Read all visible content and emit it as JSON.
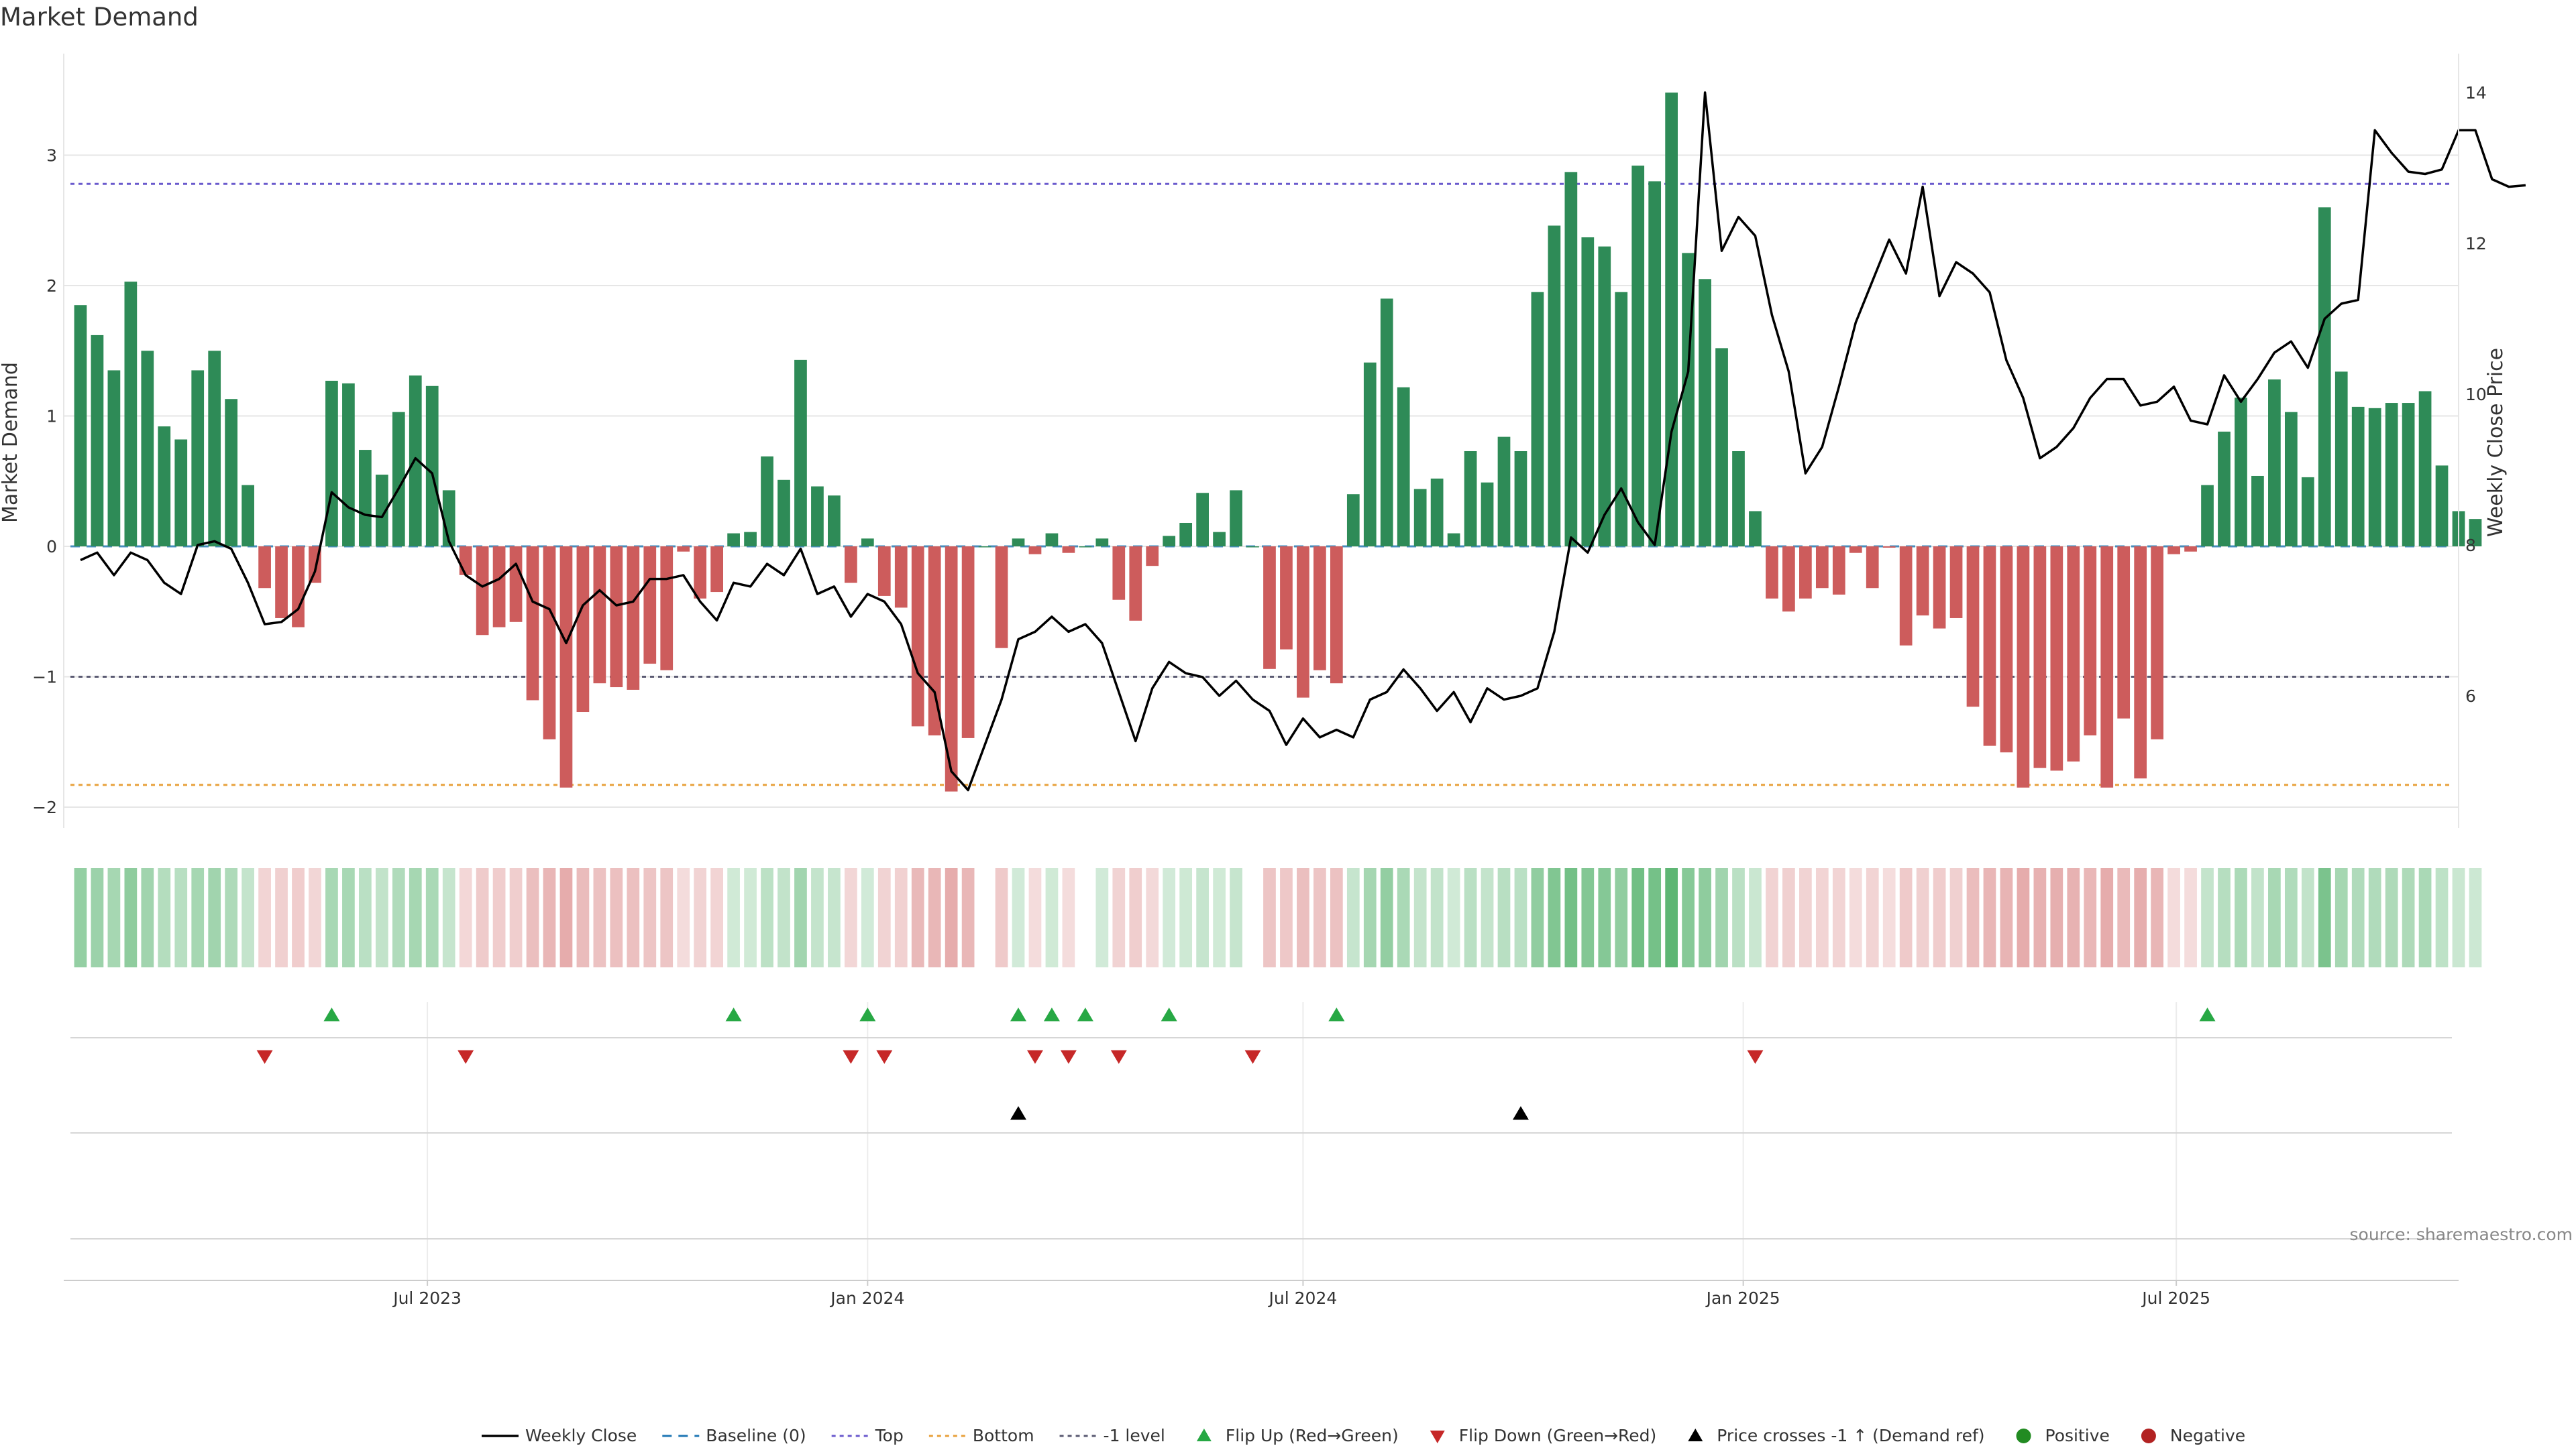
{
  "chart_data": {
    "type": "bar",
    "title": "Market Demand",
    "ylabel": "Market Demand",
    "y2label": "Weekly Close Price",
    "ylim": [
      -2.2,
      3.6
    ],
    "y2lim": [
      4.5,
      14.8
    ],
    "yticks": [
      -2,
      -1,
      0,
      1,
      2,
      3
    ],
    "y2ticks": [
      6,
      8,
      10,
      12,
      14
    ],
    "x_start": "2023-02-06",
    "x_step_days": 7,
    "xlim": [
      "2023-01-30",
      "2025-10-27"
    ],
    "xticks": [
      {
        "date": "2023-07-01",
        "label": "Jul 2023"
      },
      {
        "date": "2024-01-01",
        "label": "Jan 2024"
      },
      {
        "date": "2024-07-01",
        "label": "Jul 2024"
      },
      {
        "date": "2025-01-01",
        "label": "Jan 2025"
      },
      {
        "date": "2025-07-01",
        "label": "Jul 2025"
      }
    ],
    "demand": [
      1.85,
      1.62,
      1.35,
      2.03,
      1.5,
      0.92,
      0.82,
      1.35,
      1.5,
      1.13,
      0.47,
      -0.32,
      -0.55,
      -0.62,
      -0.28,
      1.27,
      1.25,
      0.74,
      0.55,
      1.03,
      1.31,
      1.23,
      0.43,
      -0.22,
      -0.68,
      -0.62,
      -0.58,
      -1.18,
      -1.48,
      -1.85,
      -1.27,
      -1.05,
      -1.08,
      -1.1,
      -0.9,
      -0.95,
      -0.04,
      -0.4,
      -0.35,
      0.1,
      0.11,
      0.69,
      0.51,
      1.43,
      0.46,
      0.39,
      -0.28,
      0.06,
      -0.38,
      -0.47,
      -1.38,
      -1.45,
      -1.88,
      -1.47,
      0.0,
      -0.78,
      0.06,
      -0.06,
      0.1,
      -0.05,
      0.0,
      0.06,
      -0.41,
      -0.57,
      -0.15,
      0.08,
      0.18,
      0.41,
      0.11,
      0.43,
      0.0,
      -0.94,
      -0.79,
      -1.16,
      -0.95,
      -1.05,
      0.4,
      1.41,
      1.9,
      1.22,
      0.44,
      0.52,
      0.1,
      0.73,
      0.49,
      0.84,
      0.73,
      1.95,
      2.46,
      2.87,
      2.37,
      2.3,
      1.95,
      2.92,
      2.8,
      3.48,
      2.25,
      2.05,
      1.52,
      0.73,
      0.27,
      -0.4,
      -0.5,
      -0.4,
      -0.32,
      -0.37,
      -0.05,
      -0.32,
      -0.01,
      -0.76,
      -0.53,
      -0.63,
      -0.55,
      -1.23,
      -1.53,
      -1.58,
      -1.85,
      -1.7,
      -1.72,
      -1.65,
      -1.45,
      -1.85,
      -1.32,
      -1.78,
      -1.48,
      -0.06,
      -0.04,
      0.47,
      0.88,
      1.14,
      0.54,
      1.28,
      1.03,
      0.53,
      2.6,
      1.34,
      1.07,
      1.06,
      1.1,
      1.1,
      1.19,
      0.62,
      0.27,
      0.21
    ],
    "close": [
      7.8,
      7.9,
      7.6,
      7.9,
      7.8,
      7.5,
      7.35,
      8.0,
      8.05,
      7.95,
      7.5,
      6.95,
      6.98,
      7.15,
      7.65,
      8.7,
      8.5,
      8.4,
      8.37,
      8.75,
      9.15,
      8.95,
      8.05,
      7.6,
      7.45,
      7.55,
      7.75,
      7.25,
      7.15,
      6.7,
      7.2,
      7.4,
      7.2,
      7.25,
      7.55,
      7.55,
      7.6,
      7.25,
      7.0,
      7.5,
      7.45,
      7.75,
      7.6,
      7.95,
      7.35,
      7.45,
      7.05,
      7.35,
      7.25,
      6.95,
      6.3,
      6.05,
      5.0,
      4.75,
      5.35,
      5.95,
      6.75,
      6.85,
      7.05,
      6.85,
      6.95,
      6.7,
      6.05,
      5.4,
      6.1,
      6.45,
      6.3,
      6.25,
      6.0,
      6.2,
      5.95,
      5.8,
      5.35,
      5.7,
      5.45,
      5.55,
      5.45,
      5.95,
      6.05,
      6.35,
      6.1,
      5.8,
      6.05,
      5.65,
      6.1,
      5.95,
      6.0,
      6.1,
      6.85,
      8.1,
      7.9,
      8.4,
      8.75,
      8.3,
      8.0,
      9.5,
      10.3,
      14.0,
      11.9,
      12.35,
      12.1,
      11.05,
      10.3,
      8.95,
      9.3,
      10.1,
      10.95,
      11.5,
      12.05,
      11.6,
      12.75,
      11.3,
      11.75,
      11.6,
      11.35,
      10.45,
      9.95,
      9.15,
      9.3,
      9.55,
      9.95,
      10.2,
      10.2,
      9.85,
      9.9,
      10.1,
      9.65,
      9.6,
      10.25,
      9.9,
      10.2,
      10.55,
      10.7,
      10.35,
      11.0,
      11.2,
      11.25,
      13.5,
      13.2,
      12.95,
      12.92,
      12.98,
      13.5,
      13.5,
      12.85,
      12.75,
      12.77
    ],
    "levels": [
      {
        "name": "Top",
        "value": 2.78,
        "color": "#6a5acd",
        "dash": "6,6"
      },
      {
        "name": "Bottom",
        "value": -1.83,
        "color": "#e8a13c",
        "dash": "6,6"
      },
      {
        "name": "-1 level",
        "value": -1.0,
        "color": "#5a5a72",
        "dash": "6,6"
      }
    ],
    "flip_up_index": [
      15,
      39,
      47,
      56,
      58,
      60,
      65,
      75,
      127
    ],
    "flip_down_index": [
      11,
      23,
      46,
      48,
      57,
      59,
      62,
      70,
      100
    ],
    "cross_up_index": [
      56,
      86
    ],
    "colors": {
      "positive": "#2e8b57",
      "negative": "#cd5c5c",
      "close_line": "#000000",
      "flip_up": "#27a844",
      "flip_down": "#c62828",
      "cross": "#000000",
      "positive_dot": "#228b22",
      "negative_dot": "#b22222",
      "baseline": "#1f77b4",
      "grid": "#e6e6e6"
    }
  },
  "legend": [
    {
      "key": "weekly-close",
      "label": "Weekly Close"
    },
    {
      "key": "baseline",
      "label": "Baseline (0)"
    },
    {
      "key": "top",
      "label": "Top"
    },
    {
      "key": "bottom",
      "label": "Bottom"
    },
    {
      "key": "minus1",
      "label": "-1 level"
    },
    {
      "key": "flip-up",
      "label": "Flip Up (Red→Green)"
    },
    {
      "key": "flip-down",
      "label": "Flip Down (Green→Red)"
    },
    {
      "key": "cross",
      "label": "Price crosses -1 ↑ (Demand ref)"
    },
    {
      "key": "positive",
      "label": "Positive"
    },
    {
      "key": "negative",
      "label": "Negative"
    }
  ],
  "source": "source: sharemaestro.com"
}
